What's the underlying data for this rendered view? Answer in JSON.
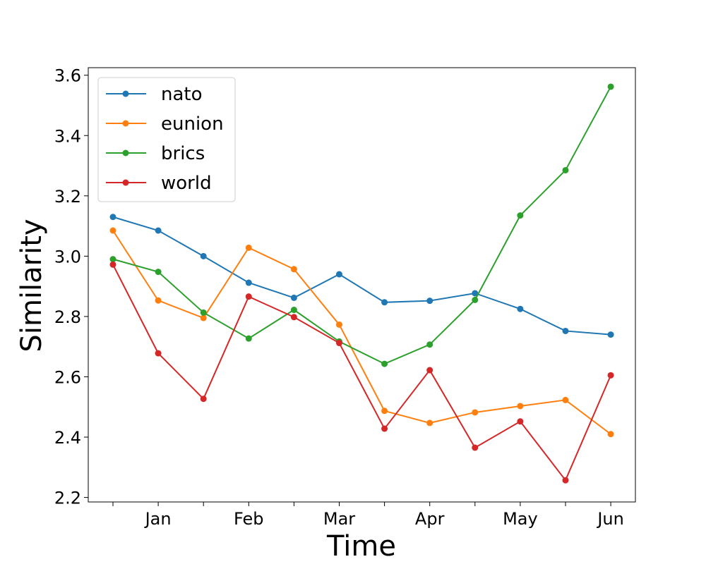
{
  "chart_data": {
    "type": "line",
    "xlabel": "Time",
    "ylabel": "Similarity",
    "x_tick_labels": [
      "Jan",
      "Feb",
      "Mar",
      "Apr",
      "May",
      "Jun"
    ],
    "y_tick_labels": [
      "2.2",
      "2.4",
      "2.6",
      "2.8",
      "3.0",
      "3.2",
      "3.4",
      "3.6"
    ],
    "ylim": [
      2.185,
      3.625
    ],
    "legend": "top-left",
    "grid": false,
    "series": [
      {
        "name": "nato",
        "color": "#1f77b4",
        "values": [
          3.13,
          3.085,
          3.0,
          2.912,
          2.862,
          2.94,
          2.847,
          2.852,
          2.877,
          2.825,
          2.752,
          2.74
        ]
      },
      {
        "name": "eunion",
        "color": "#ff7f0e",
        "values": [
          3.085,
          2.853,
          2.795,
          3.028,
          2.957,
          2.773,
          2.487,
          2.447,
          2.482,
          2.503,
          2.523,
          2.41
        ]
      },
      {
        "name": "brics",
        "color": "#2ca02c",
        "values": [
          2.99,
          2.948,
          2.813,
          2.727,
          2.822,
          2.717,
          2.643,
          2.707,
          2.855,
          3.135,
          3.285,
          3.562
        ]
      },
      {
        "name": "world",
        "color": "#d62728",
        "values": [
          2.972,
          2.678,
          2.527,
          2.866,
          2.798,
          2.712,
          2.428,
          2.622,
          2.365,
          2.452,
          2.257,
          2.605
        ]
      }
    ]
  }
}
